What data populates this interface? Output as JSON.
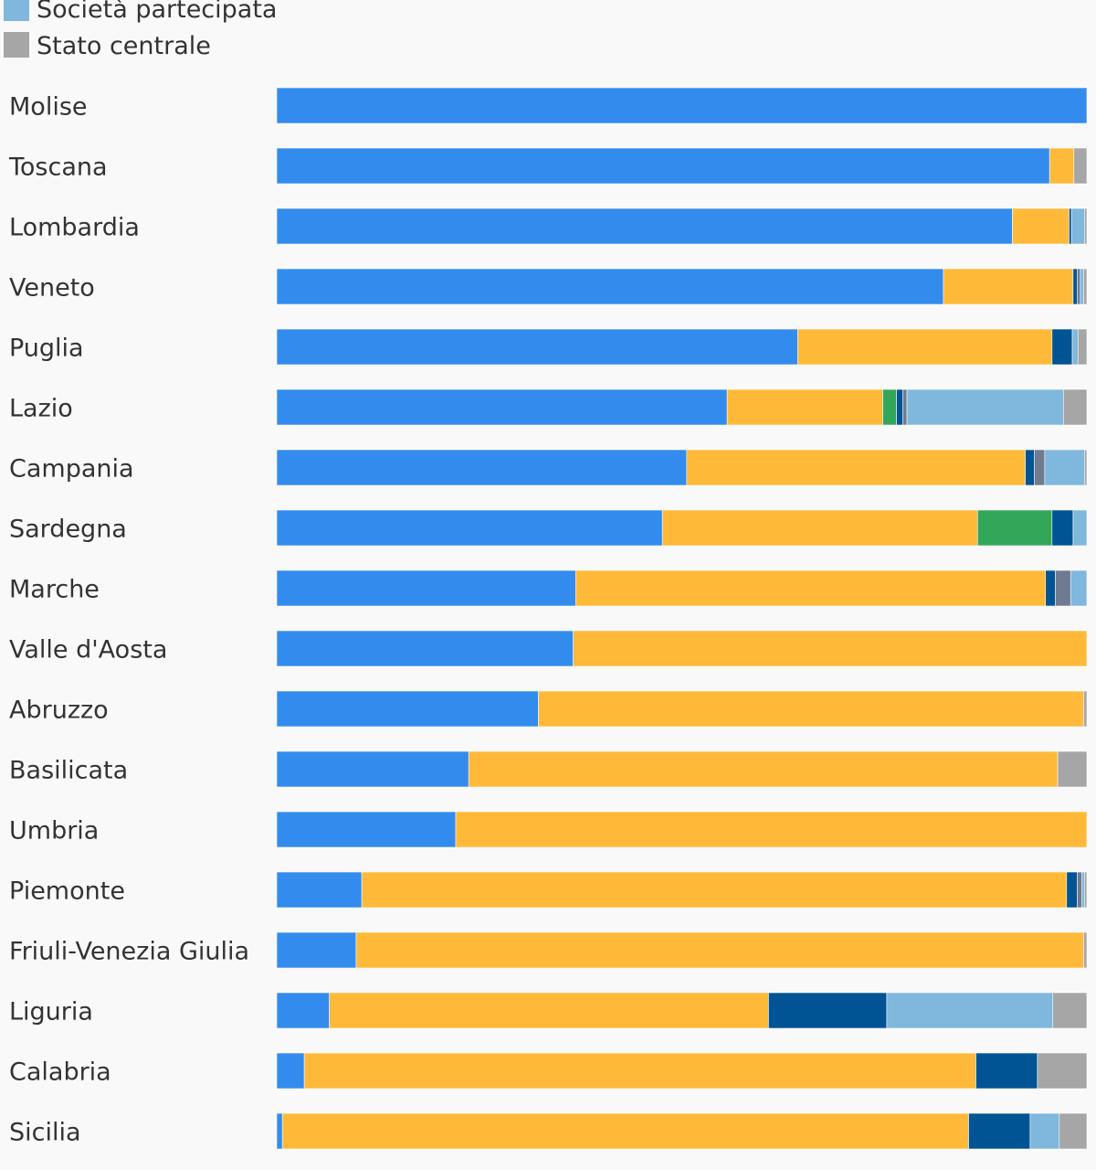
{
  "chart_data": {
    "type": "bar",
    "orientation": "horizontal",
    "stacked": true,
    "normalized": true,
    "xlim": [
      0,
      100
    ],
    "grid": false,
    "legend_position": "top-left",
    "legend_visible": [
      {
        "name": "Società partecipata",
        "color": "#7fb7dd"
      },
      {
        "name": "Stato centrale",
        "color": "#a6a6a6"
      }
    ],
    "categories": [
      "Molise",
      "Toscana",
      "Lombardia",
      "Veneto",
      "Puglia",
      "Lazio",
      "Campania",
      "Sardegna",
      "Marche",
      "Valle d'Aosta",
      "Abruzzo",
      "Basilicata",
      "Umbria",
      "Piemonte",
      "Friuli-Venezia Giulia",
      "Liguria",
      "Calabria",
      "Sicilia"
    ],
    "series": [
      {
        "color": "#338ced",
        "values": [
          100,
          95.4,
          90.8,
          82.3,
          64.3,
          55.6,
          50.6,
          47.6,
          36.9,
          36.6,
          32.3,
          23.7,
          22.1,
          10.5,
          9.8,
          6.5,
          3.4,
          0.7
        ]
      },
      {
        "color": "#ffb938",
        "values": [
          0,
          3.0,
          7.0,
          16.0,
          31.4,
          19.2,
          41.8,
          38.9,
          58.0,
          63.4,
          67.3,
          72.7,
          77.9,
          87.0,
          89.8,
          54.2,
          82.9,
          84.7
        ]
      },
      {
        "color": "#34a65a",
        "values": [
          0,
          0,
          0,
          0,
          0,
          1.7,
          0,
          9.2,
          0,
          0,
          0,
          0,
          0,
          0,
          0,
          0,
          0,
          0
        ]
      },
      {
        "color": "#005493",
        "values": [
          0,
          0,
          0.3,
          0.5,
          2.5,
          0.8,
          1.1,
          2.6,
          1.2,
          0,
          0,
          0,
          0,
          1.3,
          0,
          14.6,
          7.6,
          7.6
        ]
      },
      {
        "color": "#6e7b91",
        "values": [
          0,
          0,
          0,
          0.4,
          0,
          0.5,
          1.3,
          0,
          1.9,
          0,
          0,
          0,
          0,
          0.6,
          0,
          0,
          0,
          0
        ]
      },
      {
        "name": "Società partecipata",
        "color": "#7fb7dd",
        "values": [
          0,
          0,
          1.6,
          0.4,
          0.7,
          19.3,
          4.9,
          1.7,
          2.0,
          0,
          0,
          0,
          0,
          0.3,
          0,
          20.5,
          0,
          3.6
        ]
      },
      {
        "name": "Stato centrale",
        "color": "#a6a6a6",
        "values": [
          0,
          1.6,
          0.3,
          0.4,
          1.1,
          2.9,
          0.3,
          0,
          0,
          0,
          0.4,
          3.6,
          0,
          0.3,
          0.4,
          4.2,
          6.1,
          3.4
        ]
      }
    ]
  }
}
